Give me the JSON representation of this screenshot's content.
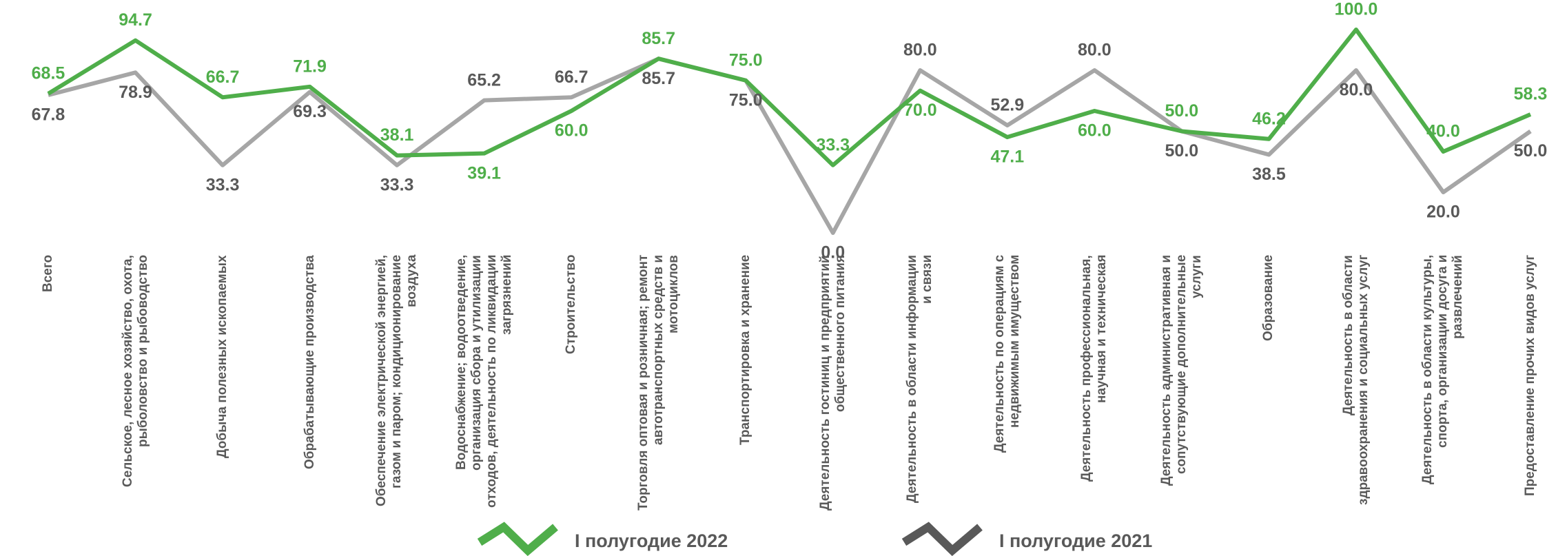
{
  "chart_data": {
    "type": "line",
    "categories": [
      "Всего",
      "Сельское, лесное хозяйство, охота, рыболовство и рыбоводство",
      "Добыча полезных ископаемых",
      "Обрабатывающие производства",
      "Обеспечение электрической энергией, газом и паром; кондиционирование воздуха",
      "Водоснабжение; водоотведение, организация сбора и утилизации отходов, деятельность по ликвидации загрязнений",
      "Строительство",
      "Торговля оптовая и розничная; ремонт автотранспортных средств и мотоциклов",
      "Транспортировка и хранение",
      "Деятельность гостиниц и предприятий общественного питания",
      "Деятельность в области информации и связи",
      "Деятельность по операциям с недвижимым имуществом",
      "Деятельность профессиональная, научная и техническая",
      "Деятельность административная и сопутствующие дополнительные услуги",
      "Образование",
      "Деятельность в области здравоохранения и социальных услуг",
      "Деятельность в области культуры, спорта, организации досуга и развлечений",
      "Предоставление прочих видов услуг"
    ],
    "series": [
      {
        "name": "I полугодие 2022",
        "color": "#4fae4a",
        "label_color": "#4fae4a",
        "values": [
          68.5,
          94.7,
          66.7,
          71.9,
          38.1,
          39.1,
          60.0,
          85.7,
          75.0,
          33.3,
          70.0,
          47.1,
          60.0,
          50.0,
          46.2,
          100.0,
          40.0,
          58.3
        ],
        "value_labels": [
          "68.5",
          "94.7",
          "66.7",
          "71.9",
          "38.1",
          "39.1",
          "60.0",
          "85.7",
          "75.0",
          "33.3",
          "70.0",
          "47.1",
          "60.0",
          "50.0",
          "46.2",
          "100.0",
          "40.0",
          "58.3"
        ]
      },
      {
        "name": "I полугодие 2021",
        "color": "#a6a6a6",
        "label_color": "#595959",
        "values": [
          67.8,
          78.9,
          33.3,
          69.3,
          33.3,
          65.2,
          66.7,
          85.7,
          75.0,
          0.0,
          80.0,
          52.9,
          80.0,
          50.0,
          38.5,
          80.0,
          20.0,
          50.0
        ],
        "value_labels": [
          "67.8",
          "78.9",
          "33.3",
          "69.3",
          "33.3",
          "65.2",
          "66.7",
          "85.7",
          "75.0",
          "0.0",
          "80.0",
          "52.9",
          "80.0",
          "50.0",
          "38.5",
          "80.0",
          "20.0",
          "50.0"
        ]
      }
    ]
  }
}
